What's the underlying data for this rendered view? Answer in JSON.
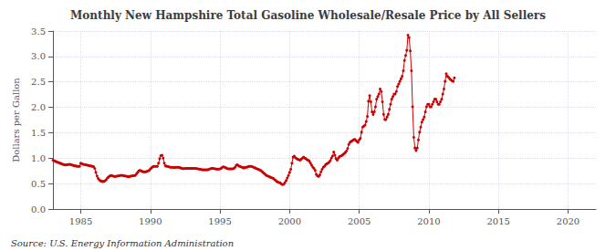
{
  "chart_data": {
    "type": "line",
    "title": "Monthly New Hampshire Total Gasoline Wholesale/Resale Price by All Sellers",
    "ylabel": "Dollars per Gallon",
    "annotations": [
      "Source: U.S. Energy Information Administration"
    ],
    "color": "#cc0000",
    "marker": "circle",
    "grid": true,
    "xlim": [
      1983.0,
      2022.0
    ],
    "xticks": [
      1985,
      1990,
      1995,
      2000,
      2005,
      2010,
      2015,
      2020
    ],
    "ylim": [
      0.0,
      3.5
    ],
    "yticks": [
      {
        "value": 0.0,
        "label": "0.0"
      },
      0.5,
      {
        "value": 1.0,
        "label": "1.0"
      },
      1.5,
      {
        "value": 2.0,
        "label": "2.0"
      },
      2.5,
      {
        "value": 3.0,
        "label": "3.0"
      },
      3.5
    ],
    "x": [
      1983.0,
      1983.083,
      1983.167,
      1983.25,
      1983.333,
      1983.417,
      1983.5,
      1983.583,
      1983.667,
      1983.75,
      1983.833,
      1983.917,
      1984.0,
      1984.083,
      1984.167,
      1984.25,
      1984.333,
      1984.417,
      1984.5,
      1984.583,
      1984.667,
      1984.75,
      1984.833,
      1984.917,
      1985.0,
      1985.083,
      1985.167,
      1985.25,
      1985.333,
      1985.417,
      1985.5,
      1985.583,
      1985.667,
      1985.75,
      1985.833,
      1985.917,
      1986.0,
      1986.083,
      1986.167,
      1986.25,
      1986.333,
      1986.417,
      1986.5,
      1986.583,
      1986.667,
      1986.75,
      1986.833,
      1986.917,
      1987.0,
      1987.083,
      1987.167,
      1987.25,
      1987.333,
      1987.417,
      1987.5,
      1987.583,
      1987.667,
      1987.75,
      1987.833,
      1987.917,
      1988.0,
      1988.083,
      1988.167,
      1988.25,
      1988.333,
      1988.417,
      1988.5,
      1988.583,
      1988.667,
      1988.75,
      1988.833,
      1988.917,
      1989.0,
      1989.083,
      1989.167,
      1989.25,
      1989.333,
      1989.417,
      1989.5,
      1989.583,
      1989.667,
      1989.75,
      1989.833,
      1989.917,
      1990.0,
      1990.083,
      1990.167,
      1990.25,
      1990.333,
      1990.417,
      1990.5,
      1990.583,
      1990.667,
      1990.75,
      1990.833,
      1990.917,
      1991.0,
      1991.083,
      1991.167,
      1991.25,
      1991.333,
      1991.417,
      1991.5,
      1991.583,
      1991.667,
      1991.75,
      1991.833,
      1991.917,
      1992.0,
      1992.083,
      1992.167,
      1992.25,
      1992.333,
      1992.417,
      1992.5,
      1992.583,
      1992.667,
      1992.75,
      1992.833,
      1992.917,
      1993.0,
      1993.083,
      1993.167,
      1993.25,
      1993.333,
      1993.417,
      1993.5,
      1993.583,
      1993.667,
      1993.75,
      1993.833,
      1993.917,
      1994.0,
      1994.083,
      1994.167,
      1994.25,
      1994.333,
      1994.417,
      1994.5,
      1994.583,
      1994.667,
      1994.75,
      1994.833,
      1994.917,
      1995.0,
      1995.083,
      1995.167,
      1995.25,
      1995.333,
      1995.417,
      1995.5,
      1995.583,
      1995.667,
      1995.75,
      1995.833,
      1995.917,
      1996.0,
      1996.083,
      1996.167,
      1996.25,
      1996.333,
      1996.417,
      1996.5,
      1996.583,
      1996.667,
      1996.75,
      1996.833,
      1996.917,
      1997.0,
      1997.083,
      1997.167,
      1997.25,
      1997.333,
      1997.417,
      1997.5,
      1997.583,
      1997.667,
      1997.75,
      1997.833,
      1997.917,
      1998.0,
      1998.083,
      1998.167,
      1998.25,
      1998.333,
      1998.417,
      1998.5,
      1998.583,
      1998.667,
      1998.75,
      1998.833,
      1998.917,
      1999.0,
      1999.083,
      1999.167,
      1999.25,
      1999.333,
      1999.417,
      1999.5,
      1999.583,
      1999.667,
      1999.75,
      1999.833,
      1999.917,
      2000.0,
      2000.083,
      2000.167,
      2000.25,
      2000.333,
      2000.417,
      2000.5,
      2000.583,
      2000.667,
      2000.75,
      2000.833,
      2000.917,
      2001.0,
      2001.083,
      2001.167,
      2001.25,
      2001.333,
      2001.417,
      2001.5,
      2001.583,
      2001.667,
      2001.75,
      2001.833,
      2001.917,
      2002.0,
      2002.083,
      2002.167,
      2002.25,
      2002.333,
      2002.417,
      2002.5,
      2002.583,
      2002.667,
      2002.75,
      2002.833,
      2002.917,
      2003.0,
      2003.083,
      2003.167,
      2003.25,
      2003.333,
      2003.417,
      2003.5,
      2003.583,
      2003.667,
      2003.75,
      2003.833,
      2003.917,
      2004.0,
      2004.083,
      2004.167,
      2004.25,
      2004.333,
      2004.417,
      2004.5,
      2004.583,
      2004.667,
      2004.75,
      2004.833,
      2004.917,
      2005.0,
      2005.083,
      2005.167,
      2005.25,
      2005.333,
      2005.417,
      2005.5,
      2005.583,
      2005.667,
      2005.75,
      2005.833,
      2005.917,
      2006.0,
      2006.083,
      2006.167,
      2006.25,
      2006.333,
      2006.417,
      2006.5,
      2006.583,
      2006.667,
      2006.75,
      2006.833,
      2006.917,
      2007.0,
      2007.083,
      2007.167,
      2007.25,
      2007.333,
      2007.417,
      2007.5,
      2007.583,
      2007.667,
      2007.75,
      2007.833,
      2007.917,
      2008.0,
      2008.083,
      2008.167,
      2008.25,
      2008.333,
      2008.417,
      2008.5,
      2008.583,
      2008.667,
      2008.75,
      2008.833,
      2008.917,
      2009.0,
      2009.083,
      2009.167,
      2009.25,
      2009.333,
      2009.417,
      2009.5,
      2009.583,
      2009.667,
      2009.75,
      2009.833,
      2009.917,
      2010.0,
      2010.083,
      2010.167,
      2010.25,
      2010.333,
      2010.417,
      2010.5,
      2010.583,
      2010.667,
      2010.75,
      2010.833,
      2010.917,
      2011.0,
      2011.083,
      2011.167,
      2011.25,
      2011.333,
      2011.417,
      2011.5,
      2011.583,
      2011.667,
      2011.75,
      2011.833
    ],
    "values": [
      0.96,
      0.95,
      0.94,
      0.93,
      0.92,
      0.91,
      0.9,
      0.895,
      0.885,
      0.875,
      0.87,
      0.865,
      0.87,
      0.875,
      0.88,
      0.875,
      0.87,
      0.86,
      0.855,
      0.85,
      0.845,
      0.84,
      0.84,
      0.84,
      0.9,
      0.89,
      0.88,
      0.875,
      0.87,
      0.865,
      0.86,
      0.855,
      0.85,
      0.845,
      0.84,
      0.835,
      0.8,
      0.72,
      0.65,
      0.6,
      0.57,
      0.555,
      0.545,
      0.54,
      0.545,
      0.555,
      0.58,
      0.61,
      0.63,
      0.65,
      0.66,
      0.655,
      0.645,
      0.64,
      0.64,
      0.645,
      0.65,
      0.655,
      0.66,
      0.665,
      0.66,
      0.655,
      0.65,
      0.645,
      0.64,
      0.635,
      0.64,
      0.645,
      0.65,
      0.655,
      0.66,
      0.66,
      0.69,
      0.72,
      0.75,
      0.76,
      0.75,
      0.74,
      0.73,
      0.73,
      0.73,
      0.74,
      0.75,
      0.76,
      0.79,
      0.81,
      0.83,
      0.84,
      0.84,
      0.84,
      0.84,
      0.9,
      0.99,
      1.05,
      1.06,
      1.0,
      0.9,
      0.85,
      0.84,
      0.84,
      0.83,
      0.82,
      0.82,
      0.82,
      0.815,
      0.815,
      0.82,
      0.82,
      0.82,
      0.815,
      0.81,
      0.8,
      0.795,
      0.795,
      0.8,
      0.8,
      0.8,
      0.8,
      0.8,
      0.8,
      0.8,
      0.8,
      0.8,
      0.8,
      0.795,
      0.79,
      0.785,
      0.78,
      0.775,
      0.77,
      0.77,
      0.77,
      0.77,
      0.77,
      0.775,
      0.785,
      0.795,
      0.8,
      0.8,
      0.795,
      0.79,
      0.785,
      0.785,
      0.785,
      0.79,
      0.8,
      0.82,
      0.83,
      0.82,
      0.81,
      0.8,
      0.79,
      0.79,
      0.79,
      0.79,
      0.79,
      0.8,
      0.82,
      0.86,
      0.87,
      0.85,
      0.84,
      0.83,
      0.82,
      0.81,
      0.81,
      0.82,
      0.82,
      0.83,
      0.84,
      0.84,
      0.84,
      0.83,
      0.82,
      0.81,
      0.8,
      0.79,
      0.78,
      0.77,
      0.76,
      0.74,
      0.72,
      0.7,
      0.68,
      0.66,
      0.65,
      0.64,
      0.63,
      0.62,
      0.61,
      0.6,
      0.58,
      0.56,
      0.54,
      0.53,
      0.52,
      0.51,
      0.49,
      0.48,
      0.49,
      0.52,
      0.56,
      0.61,
      0.66,
      0.72,
      0.78,
      0.9,
      1.02,
      1.04,
      1.01,
      0.99,
      0.98,
      0.97,
      0.96,
      0.98,
      1.0,
      1.02,
      1.0,
      0.99,
      0.97,
      0.96,
      0.94,
      0.9,
      0.86,
      0.82,
      0.8,
      0.76,
      0.68,
      0.65,
      0.64,
      0.67,
      0.73,
      0.78,
      0.82,
      0.84,
      0.87,
      0.89,
      0.9,
      0.92,
      0.95,
      1.0,
      1.04,
      1.12,
      1.06,
      0.99,
      0.96,
      1.0,
      1.03,
      1.04,
      1.05,
      1.07,
      1.09,
      1.11,
      1.14,
      1.19,
      1.27,
      1.31,
      1.33,
      1.34,
      1.36,
      1.37,
      1.35,
      1.33,
      1.31,
      1.36,
      1.39,
      1.51,
      1.61,
      1.63,
      1.65,
      1.72,
      1.82,
      2.12,
      2.23,
      2.11,
      1.91,
      1.86,
      1.91,
      2.01,
      2.16,
      2.21,
      2.26,
      2.36,
      2.31,
      2.11,
      1.86,
      1.76,
      1.76,
      1.81,
      1.86,
      1.96,
      2.06,
      2.16,
      2.21,
      2.26,
      2.26,
      2.31,
      2.41,
      2.46,
      2.51,
      2.56,
      2.61,
      2.72,
      2.92,
      3.02,
      3.12,
      3.42,
      3.37,
      3.11,
      2.72,
      2.01,
      1.41,
      1.2,
      1.15,
      1.2,
      1.36,
      1.51,
      1.61,
      1.71,
      1.76,
      1.81,
      1.91,
      2.01,
      2.06,
      2.06,
      2.01,
      2.01,
      2.06,
      2.11,
      2.16,
      2.16,
      2.11,
      2.06,
      2.06,
      2.11,
      2.16,
      2.26,
      2.36,
      2.51,
      2.66,
      2.61,
      2.59,
      2.56,
      2.54,
      2.52,
      2.51,
      2.58
    ]
  }
}
